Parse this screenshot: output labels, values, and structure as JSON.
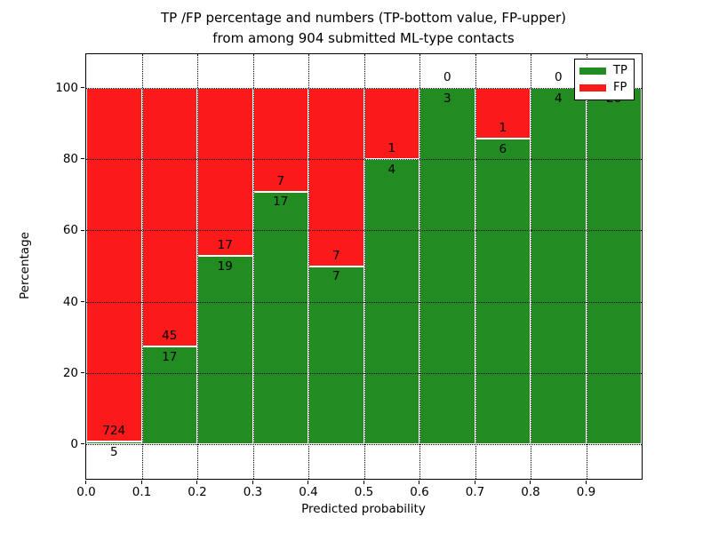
{
  "chart_data": {
    "type": "bar",
    "stacked": true,
    "title_line1": "TP /FP percentage and numbers (TP-bottom value, FP-upper)",
    "title_line2": "from among 904 submitted ML-type contacts",
    "xlabel": "Predicted probability",
    "ylabel": "Percentage",
    "total_contacts": 904,
    "x_ticks": [
      0.0,
      0.1,
      0.2,
      0.3,
      0.4,
      0.5,
      0.6,
      0.7,
      0.8,
      0.9
    ],
    "x_tick_labels": [
      "0.0",
      "0.1",
      "0.2",
      "0.3",
      "0.4",
      "0.5",
      "0.6",
      "0.7",
      "0.8",
      "0.9"
    ],
    "y_ticks": [
      0,
      20,
      40,
      60,
      80,
      100
    ],
    "y_tick_labels": [
      "0",
      "20",
      "40",
      "60",
      "80",
      "100"
    ],
    "xlim": [
      0.0,
      1.0
    ],
    "ylim": [
      -10,
      110
    ],
    "grid": true,
    "legend_position": "upper right",
    "legend": [
      {
        "label": "TP",
        "color": "#228B22"
      },
      {
        "label": "FP",
        "color": "#FB1A1A"
      }
    ],
    "bars": [
      {
        "bin_start": 0.0,
        "tp": 5,
        "fp": 724,
        "tp_pct": 0.69
      },
      {
        "bin_start": 0.1,
        "tp": 17,
        "fp": 45,
        "tp_pct": 27.42
      },
      {
        "bin_start": 0.2,
        "tp": 19,
        "fp": 17,
        "tp_pct": 52.78
      },
      {
        "bin_start": 0.3,
        "tp": 17,
        "fp": 7,
        "tp_pct": 70.83
      },
      {
        "bin_start": 0.4,
        "tp": 7,
        "fp": 7,
        "tp_pct": 50.0
      },
      {
        "bin_start": 0.5,
        "tp": 4,
        "fp": 1,
        "tp_pct": 80.0
      },
      {
        "bin_start": 0.6,
        "tp": 3,
        "fp": 0,
        "tp_pct": 100.0
      },
      {
        "bin_start": 0.7,
        "tp": 6,
        "fp": 1,
        "tp_pct": 85.71
      },
      {
        "bin_start": 0.8,
        "tp": 4,
        "fp": 0,
        "tp_pct": 100.0
      },
      {
        "bin_start": 0.9,
        "tp": 20,
        "fp": 0,
        "tp_pct": 100.0
      }
    ],
    "colors": {
      "tp": "#228B22",
      "fp": "#FB1A1A",
      "bar_edge": "#ffffff",
      "grid": "#000000",
      "frame": "#000000",
      "background": "#ffffff"
    }
  }
}
